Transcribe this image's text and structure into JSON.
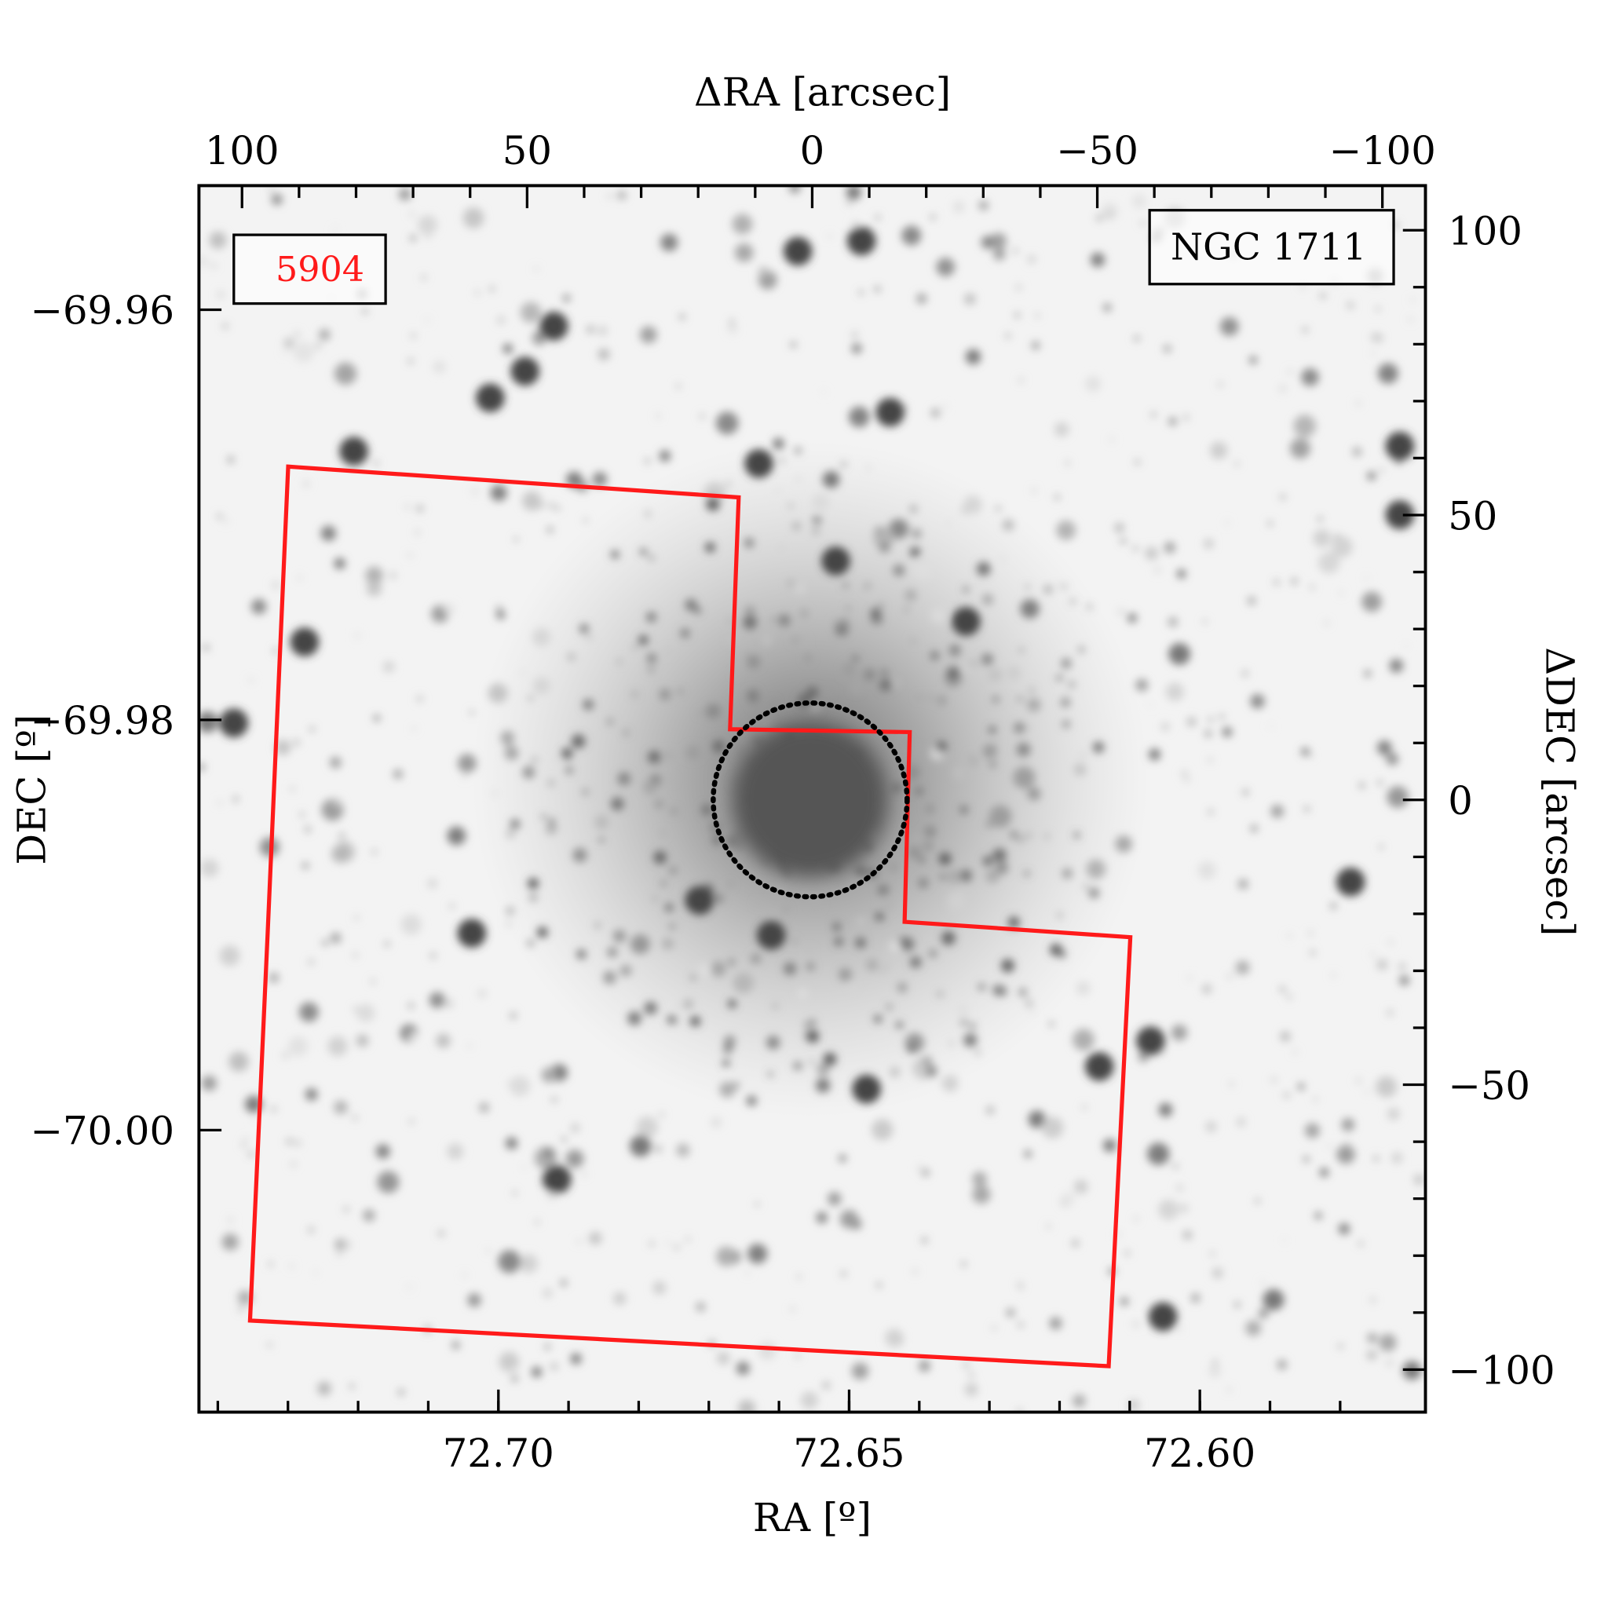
{
  "chart_data": {
    "type": "image",
    "title": "",
    "top_axis": {
      "label": "ΔRA [arcsec]",
      "ticks": [
        "100",
        "50",
        "0",
        "−50",
        "−100"
      ],
      "values": [
        100,
        50,
        0,
        -50,
        -100
      ],
      "range": [
        107.7,
        -107.4
      ],
      "minor_step": 10
    },
    "right_axis": {
      "label": "ΔDEC [arcsec]",
      "ticks": [
        "100",
        "50",
        "0",
        "−50",
        "−100"
      ],
      "values": [
        100,
        50,
        0,
        -50,
        -100
      ],
      "range": [
        -107.4,
        107.7
      ],
      "minor_step": 10
    },
    "bottom_axis": {
      "label": "RA [º]",
      "ticks": [
        "72.70",
        "72.65",
        "72.60"
      ],
      "values": [
        72.7,
        72.65,
        72.6
      ]
    },
    "left_axis": {
      "label": "DEC [º]",
      "ticks": [
        "−69.96",
        "−69.98",
        "−70.00"
      ],
      "values": [
        -69.96,
        -69.98,
        -70.0
      ]
    },
    "field_label": {
      "text": "5904",
      "color": "#ff1a1a"
    },
    "object_label": {
      "text": "NGC 1711"
    },
    "footprint": {
      "color": "#ff1a1a",
      "units": "arcsec (ΔRA, ΔDEC)",
      "vertices": [
        [
          91.9,
          58.5
        ],
        [
          12.9,
          53.1
        ],
        [
          14.4,
          12.4
        ],
        [
          -17.1,
          11.9
        ],
        [
          -16.2,
          -21.4
        ],
        [
          -55.8,
          -24.1
        ],
        [
          -52.0,
          -99.4
        ],
        [
          98.6,
          -91.4
        ],
        [
          95.5,
          -23.4
        ]
      ]
    },
    "core_circle": {
      "center": [
        0,
        0
      ],
      "radius_arcsec": 17,
      "style": "dotted",
      "color": "#000000"
    },
    "colormap": "inverted grayscale"
  }
}
